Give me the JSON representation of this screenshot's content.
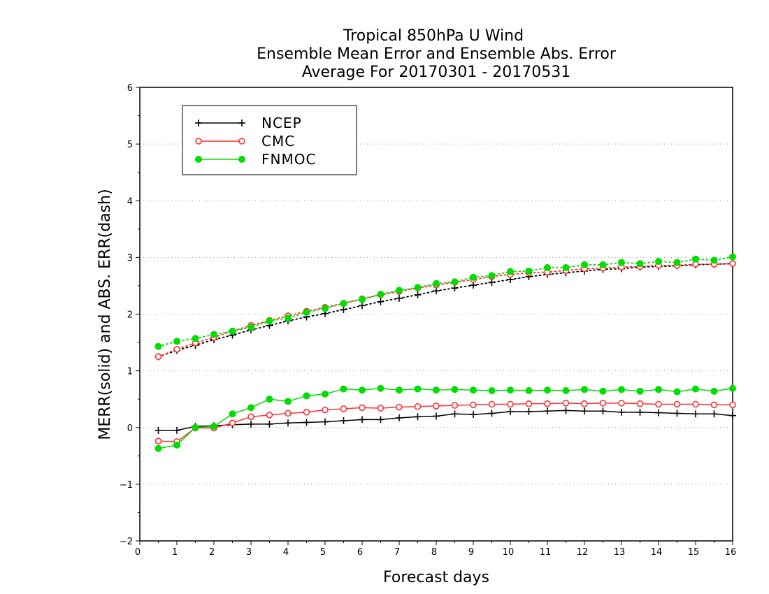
{
  "chart_data": {
    "type": "line",
    "title": [
      "Tropical 850hPa U Wind",
      "Ensemble Mean Error and Ensemble Abs. Error",
      "Average For 20170301 - 20170531"
    ],
    "xlabel": "Forecast days",
    "ylabel": "MERR(solid) and ABS. ERR(dash)",
    "xlim": [
      0,
      16
    ],
    "ylim": [
      -2,
      6
    ],
    "xticks": [
      "0",
      "1",
      "2",
      "3",
      "4",
      "5",
      "6",
      "7",
      "8",
      "9",
      "10",
      "11",
      "12",
      "13",
      "14",
      "15",
      "16"
    ],
    "yticks": [
      "−2",
      "−1",
      "0",
      "1",
      "2",
      "3",
      "4",
      "5",
      "6"
    ],
    "grid": "horizontal dotted",
    "legend_position": "top-left",
    "x": [
      0.5,
      1,
      1.5,
      2,
      2.5,
      3,
      3.5,
      4,
      4.5,
      5,
      5.5,
      6,
      6.5,
      7,
      7.5,
      8,
      8.5,
      9,
      9.5,
      10,
      10.5,
      11,
      11.5,
      12,
      12.5,
      13,
      13.5,
      14,
      14.5,
      15,
      15.5,
      16
    ],
    "series": [
      {
        "name": "NCEP",
        "color": "#000000",
        "marker": "plus",
        "merr": [
          -0.05,
          -0.05,
          0.02,
          0.03,
          0.05,
          0.06,
          0.06,
          0.08,
          0.09,
          0.1,
          0.12,
          0.14,
          0.14,
          0.17,
          0.19,
          0.2,
          0.24,
          0.23,
          0.25,
          0.28,
          0.28,
          0.29,
          0.3,
          0.29,
          0.29,
          0.27,
          0.27,
          0.26,
          0.25,
          0.24,
          0.24,
          0.21
        ],
        "abs_err": [
          1.25,
          1.36,
          1.45,
          1.55,
          1.63,
          1.72,
          1.8,
          1.88,
          1.95,
          2.01,
          2.08,
          2.15,
          2.22,
          2.28,
          2.34,
          2.41,
          2.46,
          2.51,
          2.56,
          2.61,
          2.66,
          2.7,
          2.73,
          2.76,
          2.79,
          2.8,
          2.83,
          2.84,
          2.85,
          2.87,
          2.88,
          2.89
        ]
      },
      {
        "name": "CMC",
        "color": "#ff3030",
        "marker": "open-circle",
        "merr": [
          -0.24,
          -0.25,
          -0.01,
          -0.01,
          0.08,
          0.19,
          0.22,
          0.25,
          0.27,
          0.31,
          0.33,
          0.35,
          0.34,
          0.36,
          0.37,
          0.38,
          0.39,
          0.4,
          0.41,
          0.41,
          0.42,
          0.42,
          0.43,
          0.42,
          0.43,
          0.43,
          0.42,
          0.41,
          0.41,
          0.41,
          0.4,
          0.4
        ],
        "abs_err": [
          1.25,
          1.38,
          1.49,
          1.59,
          1.7,
          1.8,
          1.89,
          1.97,
          2.05,
          2.12,
          2.19,
          2.27,
          2.34,
          2.4,
          2.46,
          2.51,
          2.56,
          2.61,
          2.66,
          2.7,
          2.73,
          2.74,
          2.77,
          2.8,
          2.81,
          2.83,
          2.84,
          2.86,
          2.86,
          2.88,
          2.88,
          2.89
        ]
      },
      {
        "name": "FNMOC",
        "color": "#00dd00",
        "marker": "filled-circle",
        "merr": [
          -0.37,
          -0.31,
          0.0,
          0.02,
          0.24,
          0.35,
          0.5,
          0.46,
          0.56,
          0.59,
          0.68,
          0.66,
          0.69,
          0.66,
          0.68,
          0.66,
          0.67,
          0.66,
          0.65,
          0.66,
          0.65,
          0.66,
          0.65,
          0.67,
          0.64,
          0.67,
          0.64,
          0.67,
          0.63,
          0.68,
          0.64,
          0.69
        ],
        "abs_err": [
          1.43,
          1.52,
          1.57,
          1.64,
          1.7,
          1.77,
          1.88,
          1.93,
          2.03,
          2.1,
          2.19,
          2.26,
          2.35,
          2.42,
          2.47,
          2.54,
          2.57,
          2.65,
          2.68,
          2.75,
          2.76,
          2.82,
          2.82,
          2.87,
          2.87,
          2.91,
          2.89,
          2.93,
          2.91,
          2.97,
          2.95,
          3.01
        ]
      }
    ]
  }
}
